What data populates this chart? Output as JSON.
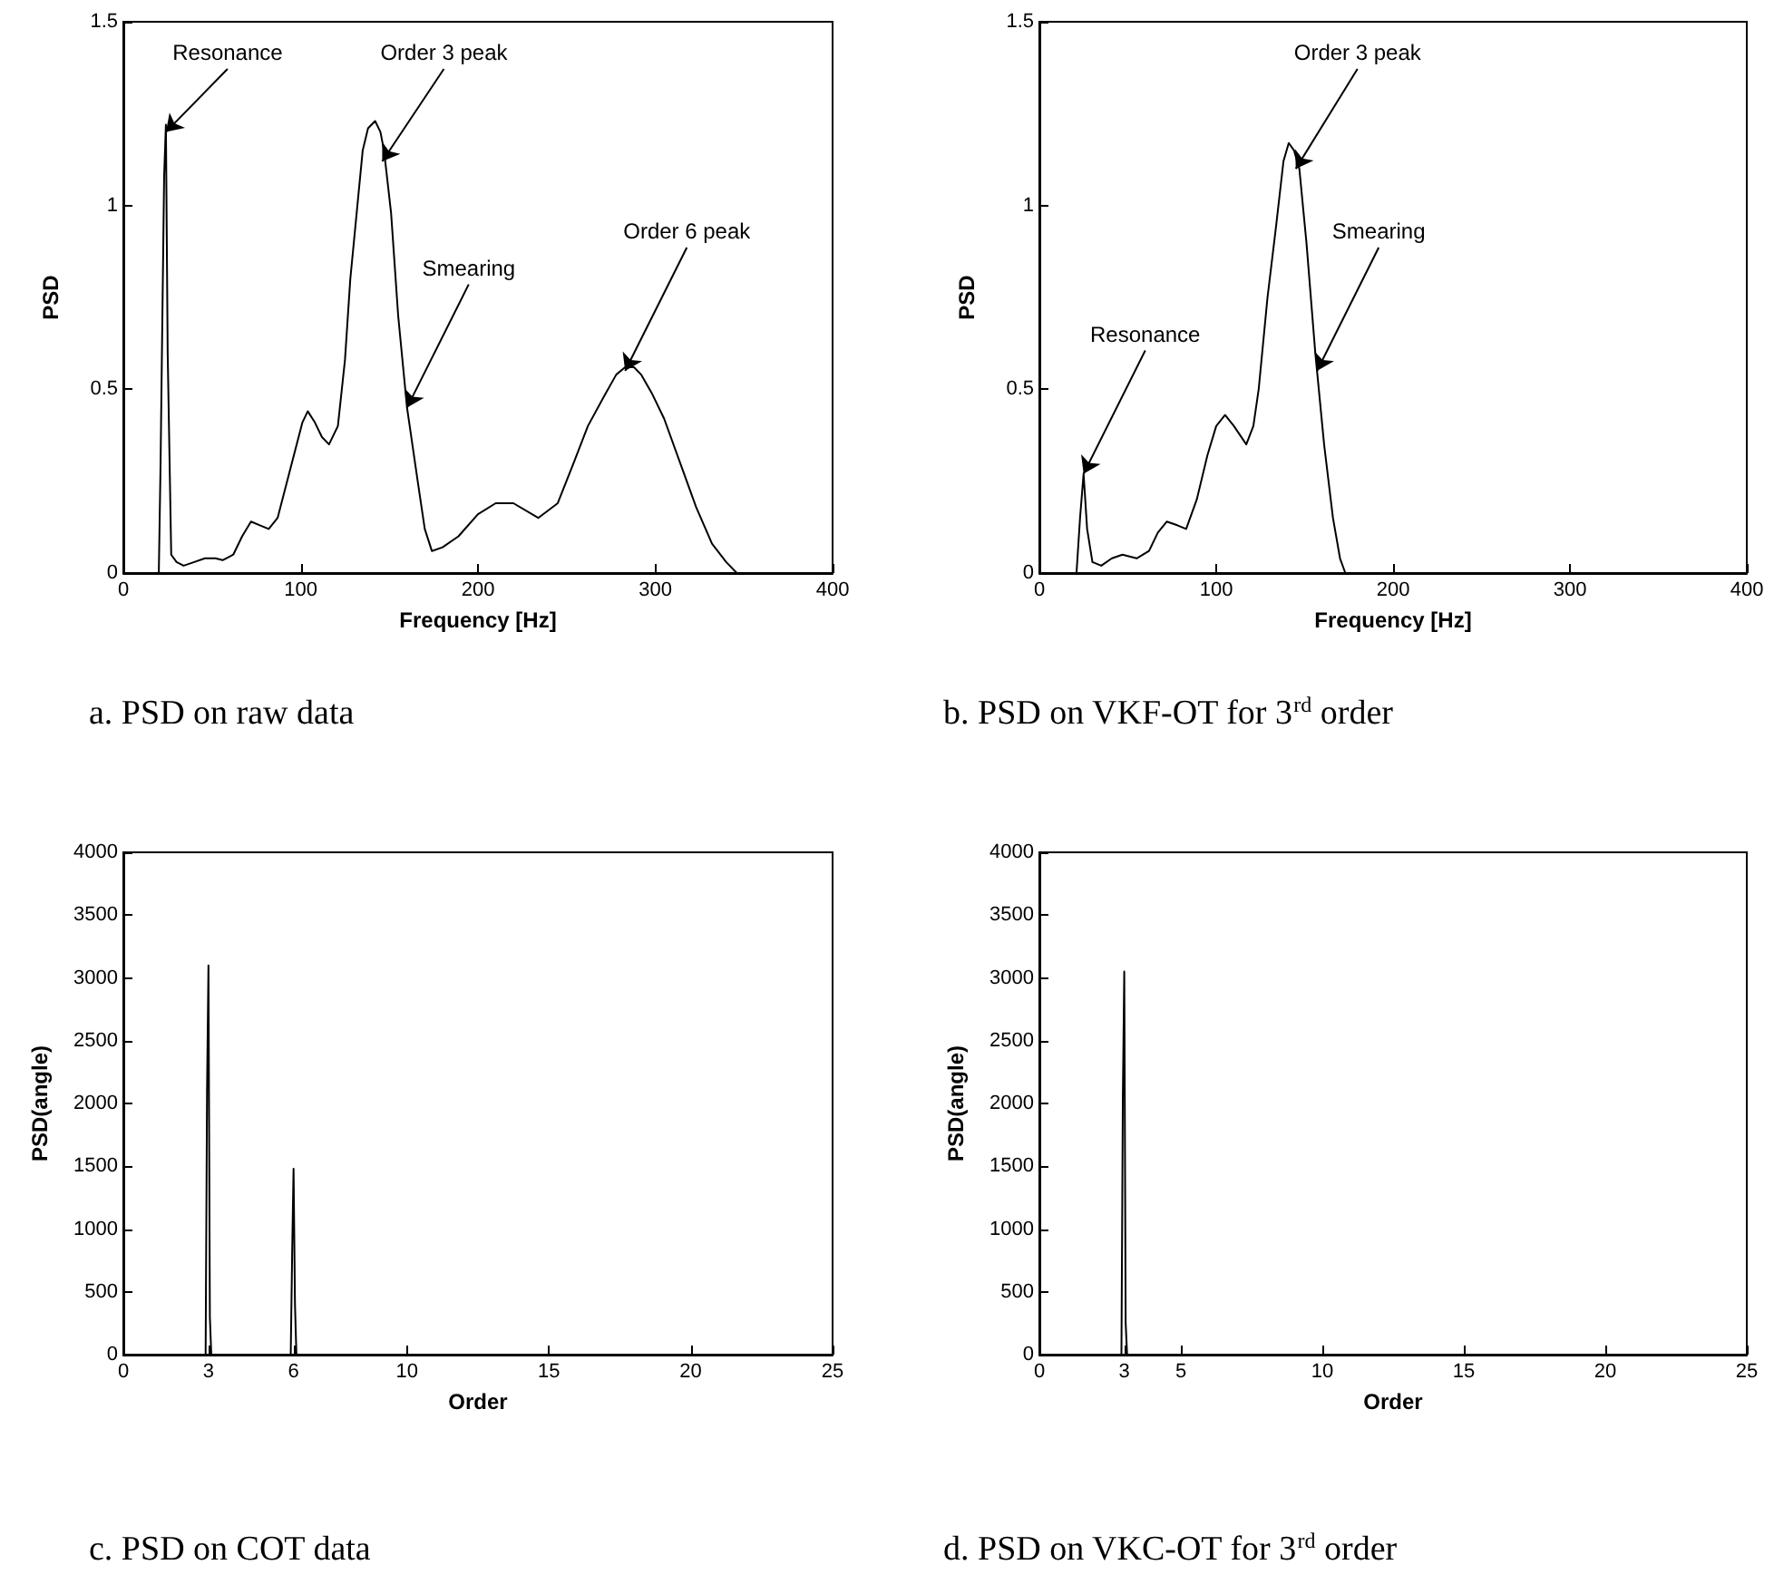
{
  "chart_data": [
    {
      "type": "line",
      "xlabel": "Frequency [Hz]",
      "ylabel": "PSD",
      "xlim": [
        0,
        400
      ],
      "ylim": [
        0,
        1.5
      ],
      "xticks": [
        0,
        100,
        200,
        300,
        400
      ],
      "yticks": [
        0,
        0.5,
        1,
        1.5
      ],
      "grid": false,
      "marker": "none",
      "line_style": "solid",
      "series": [
        {
          "color": "#000000",
          "x": [
            0,
            20,
            21,
            23,
            24,
            25,
            27,
            30,
            34,
            40,
            46,
            52,
            56,
            62,
            67,
            72,
            77,
            82,
            87,
            94,
            101,
            104,
            108,
            112,
            116,
            121,
            125,
            128,
            132,
            135,
            138,
            142,
            145,
            147,
            151,
            155,
            160,
            166,
            170,
            174,
            180,
            189,
            200,
            210,
            220,
            234,
            245,
            254,
            262,
            271,
            278,
            283,
            288,
            292,
            298,
            305,
            314,
            323,
            332,
            340,
            346,
            360,
            380,
            400
          ],
          "values": [
            0,
            0,
            0.3,
            1.08,
            1.22,
            0.6,
            0.05,
            0.03,
            0.02,
            0.03,
            0.04,
            0.04,
            0.035,
            0.05,
            0.1,
            0.14,
            0.13,
            0.12,
            0.15,
            0.28,
            0.41,
            0.44,
            0.41,
            0.37,
            0.35,
            0.4,
            0.58,
            0.8,
            1.0,
            1.15,
            1.21,
            1.23,
            1.2,
            1.15,
            0.98,
            0.7,
            0.45,
            0.25,
            0.12,
            0.06,
            0.07,
            0.1,
            0.16,
            0.19,
            0.19,
            0.15,
            0.19,
            0.3,
            0.4,
            0.48,
            0.54,
            0.56,
            0.56,
            0.54,
            0.49,
            0.42,
            0.3,
            0.18,
            0.08,
            0.03,
            0,
            0,
            0,
            0
          ]
        }
      ],
      "annotations": [
        {
          "text": "Resonance",
          "x": 24,
          "y": 1.2
        },
        {
          "text": "Order 3 peak",
          "x": 146,
          "y": 1.12
        },
        {
          "text": "Smearing",
          "x": 160,
          "y": 0.45
        },
        {
          "text": "Order 6 peak",
          "x": 283,
          "y": 0.55
        },
        "a. PSD on raw data"
      ]
    },
    {
      "type": "line",
      "xlabel": "Frequency [Hz]",
      "ylabel": "PSD",
      "xlim": [
        0,
        400
      ],
      "ylim": [
        0,
        1.5
      ],
      "xticks": [
        0,
        100,
        200,
        300,
        400
      ],
      "yticks": [
        0,
        0.5,
        1,
        1.5
      ],
      "grid": false,
      "marker": "none",
      "line_style": "solid",
      "series": [
        {
          "color": "#000000",
          "x": [
            0,
            21,
            23,
            25,
            27,
            30,
            35,
            41,
            47,
            55,
            62,
            67,
            72,
            78,
            83,
            89,
            95,
            100,
            105,
            110,
            117,
            121,
            124,
            129,
            134,
            138,
            141,
            144,
            147,
            151,
            156,
            161,
            166,
            170,
            173,
            180,
            200,
            300,
            400
          ],
          "values": [
            0,
            0,
            0.15,
            0.27,
            0.12,
            0.03,
            0.02,
            0.04,
            0.05,
            0.04,
            0.06,
            0.11,
            0.14,
            0.13,
            0.12,
            0.2,
            0.32,
            0.4,
            0.43,
            0.4,
            0.35,
            0.4,
            0.5,
            0.75,
            0.95,
            1.12,
            1.17,
            1.15,
            1.1,
            0.9,
            0.6,
            0.35,
            0.15,
            0.04,
            0,
            0,
            0,
            0,
            0
          ]
        }
      ],
      "annotations": [
        {
          "text": "Resonance",
          "x": 25,
          "y": 0.27
        },
        {
          "text": "Order 3 peak",
          "x": 145,
          "y": 1.1
        },
        {
          "text": "Smearing",
          "x": 157,
          "y": 0.55
        },
        "b. PSD on VKF-OT for 3$^{rd}$ order"
      ]
    },
    {
      "type": "line",
      "xlabel": "Order",
      "ylabel": "PSD(angle)",
      "xlim": [
        0,
        25
      ],
      "ylim": [
        0,
        4000
      ],
      "xticks": [
        0,
        3,
        6,
        10,
        15,
        20,
        25
      ],
      "yticks": [
        0,
        500,
        1000,
        1500,
        2000,
        2500,
        3000,
        3500,
        4000
      ],
      "grid": false,
      "marker": "none",
      "line_style": "solid",
      "series": [
        {
          "color": "#000000",
          "x": [
            0,
            2.9,
            2.95,
            3,
            3.05,
            3.1,
            5.9,
            5.95,
            6,
            6.05,
            6.1,
            25
          ],
          "values": [
            0,
            0,
            2100,
            3100,
            300,
            0,
            0,
            800,
            1480,
            400,
            0,
            0
          ]
        }
      ],
      "annotations": [
        "c. PSD on COT data"
      ]
    },
    {
      "type": "line",
      "xlabel": "Order",
      "ylabel": "PSD(angle)",
      "xlim": [
        0,
        25
      ],
      "ylim": [
        0,
        4000
      ],
      "xticks": [
        0,
        3,
        5,
        10,
        15,
        20,
        25
      ],
      "yticks": [
        0,
        500,
        1000,
        1500,
        2000,
        2500,
        3000,
        3500,
        4000
      ],
      "grid": false,
      "marker": "none",
      "line_style": "solid",
      "series": [
        {
          "color": "#000000",
          "x": [
            0,
            2.9,
            2.95,
            3,
            3.05,
            3.1,
            25
          ],
          "values": [
            0,
            0,
            2050,
            3050,
            250,
            0,
            0
          ]
        }
      ],
      "annotations": [
        "d. PSD on VKC-OT for 3$^{rd}$ order"
      ]
    }
  ]
}
